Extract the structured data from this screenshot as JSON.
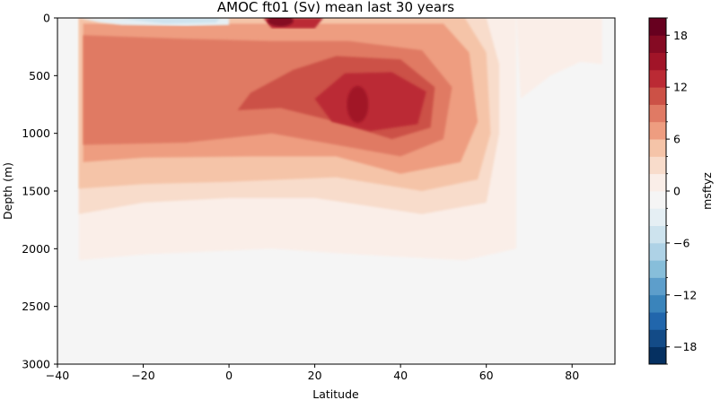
{
  "chart_data": {
    "type": "heatmap",
    "subtype": "filled-contour",
    "title": "AMOC ft01 (Sv) mean last 30 years",
    "xlabel": "Latitude",
    "ylabel": "Depth (m)",
    "xlim": [
      -40,
      90
    ],
    "ylim": [
      3000,
      0
    ],
    "y_inverted": true,
    "x_ticks": [
      -40,
      -20,
      0,
      20,
      40,
      60,
      80
    ],
    "x_tick_labels": [
      "−40",
      "−20",
      "0",
      "20",
      "40",
      "60",
      "80"
    ],
    "y_ticks": [
      0,
      500,
      1000,
      1500,
      2000,
      2500,
      3000
    ],
    "y_tick_labels": [
      "0",
      "500",
      "1000",
      "1500",
      "2000",
      "2500",
      "3000"
    ],
    "colorbar": {
      "label": "msftyz",
      "colormap": "RdBu_r",
      "levels": [
        -20,
        -18,
        -16,
        -14,
        -12,
        -10,
        -8,
        -6,
        -4,
        -2,
        0,
        2,
        4,
        6,
        8,
        10,
        12,
        14,
        16,
        18,
        20
      ],
      "ticks": [
        -18,
        -12,
        -6,
        0,
        6,
        12,
        18
      ],
      "tick_labels": [
        "−18",
        "−12",
        "−6",
        "0",
        "6",
        "12",
        "18"
      ],
      "colors": [
        "#053061",
        "#134b87",
        "#2166ac",
        "#3a84bb",
        "#5d9ecb",
        "#87beda",
        "#aed2e6",
        "#cde3ee",
        "#e5eff4",
        "#f5f5f5",
        "#faeee8",
        "#f8dccb",
        "#f5c4a8",
        "#ee9d80",
        "#e07a64",
        "#cc5146",
        "#bb2a34",
        "#a11428",
        "#850a23",
        "#67001f"
      ]
    },
    "features": [
      {
        "name": "upper overturning cell",
        "lat_range": [
          -35,
          67
        ],
        "depth_range": [
          0,
          2100
        ],
        "max_sv": 17
      },
      {
        "name": "maximum core",
        "lat": 30,
        "depth": 750,
        "value_sv": 16
      },
      {
        "name": "southern surface negative cell",
        "lat_range": [
          -30,
          0
        ],
        "depth_range": [
          0,
          60
        ],
        "min_sv": -4
      },
      {
        "name": "near-surface maximum",
        "lat": 12,
        "depth": 30,
        "value_sv": 18
      },
      {
        "name": "deep weak negative cell",
        "lat_range": [
          -25,
          30
        ],
        "depth_range": [
          2300,
          3000
        ],
        "value_sv": -1
      }
    ]
  }
}
